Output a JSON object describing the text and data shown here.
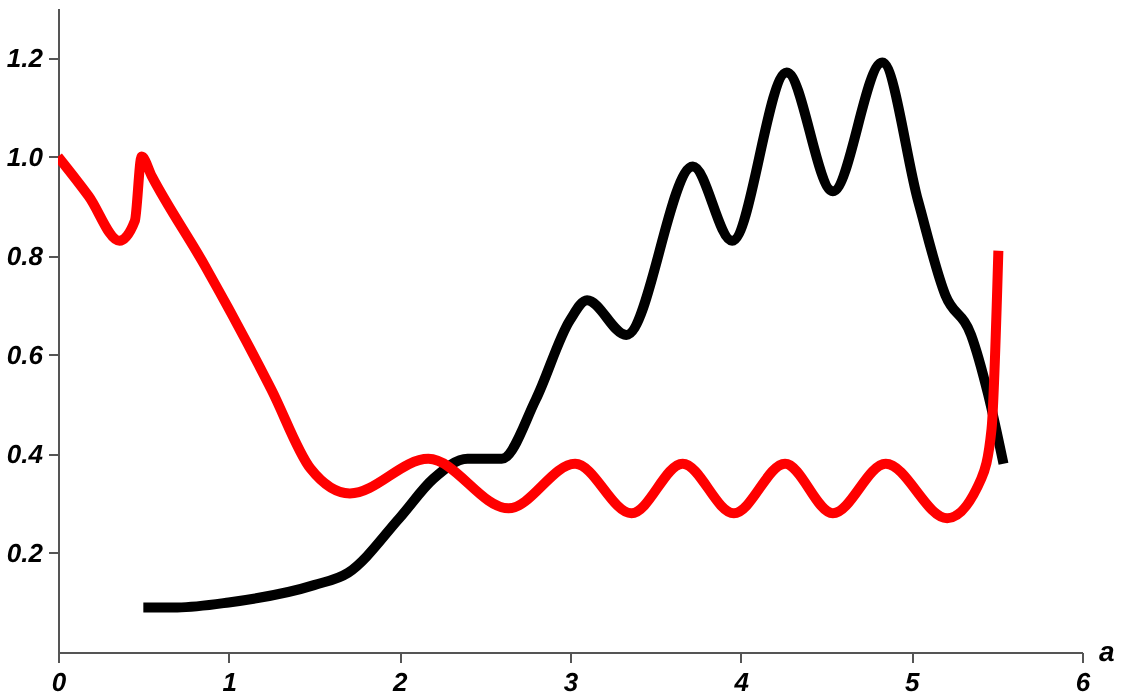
{
  "chart_data": {
    "type": "line",
    "xlabel": "a",
    "xlim": [
      0,
      6
    ],
    "xticks": [
      0,
      1,
      2,
      3,
      4,
      5,
      6
    ],
    "ylim": [
      0,
      1.3
    ],
    "yticks": [
      0.2,
      0.4,
      0.6,
      0.8,
      {
        "value": 1,
        "label": "1.0"
      },
      1.2
    ],
    "grid": false,
    "marker": "none",
    "line_style": "solid",
    "series": [
      {
        "color": "#000000",
        "x": [
          0.5,
          0.7,
          1.0,
          1.5,
          1.7,
          2.0,
          2.2,
          2.4,
          2.6,
          2.8,
          3.0,
          3.1,
          3.33,
          3.72,
          3.95,
          4.27,
          4.54,
          4.83,
          5.04,
          5.2,
          5.35,
          5.45,
          5.54
        ],
        "values": [
          0.09,
          0.09,
          0.1,
          0.135,
          0.16,
          0.27,
          0.35,
          0.39,
          0.39,
          0.51,
          0.67,
          0.71,
          0.64,
          0.98,
          0.83,
          1.17,
          0.93,
          1.19,
          0.91,
          0.72,
          0.64,
          0.52,
          0.38
        ]
      },
      {
        "color": "#ff0000",
        "x": [
          0,
          0.18,
          0.36,
          0.45,
          0.49,
          0.55,
          0.86,
          1.25,
          1.48,
          1.71,
          2.17,
          2.64,
          3.03,
          3.36,
          3.66,
          3.96,
          4.26,
          4.54,
          4.85,
          5.21,
          5.41,
          5.47,
          5.51
        ],
        "values": [
          1.0,
          0.92,
          0.83,
          0.87,
          1.0,
          0.96,
          0.78,
          0.53,
          0.37,
          0.32,
          0.39,
          0.29,
          0.38,
          0.28,
          0.38,
          0.28,
          0.38,
          0.28,
          0.38,
          0.27,
          0.35,
          0.45,
          0.81
        ]
      }
    ]
  }
}
